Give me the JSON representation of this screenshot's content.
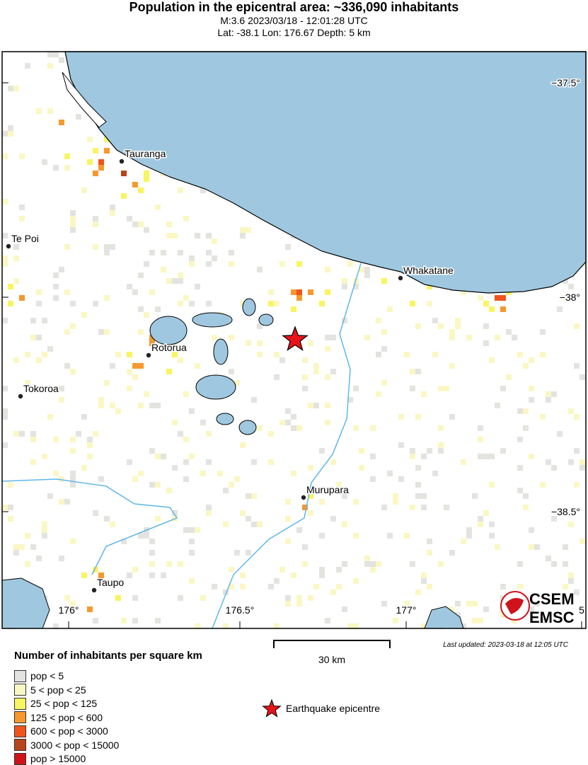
{
  "header": {
    "title": "Population in the epicentral area: ~336,090 inhabitants",
    "subtitle": "M:3.6 2023/03/18 - 12:01:28 UTC",
    "location": "Lat: -38.1 Lon: 176.67 Depth: 5 km"
  },
  "map": {
    "colors": {
      "sea": "#9fc8e0",
      "land": "#ffffff",
      "coast": "#000000",
      "river": "#5fb8e8"
    },
    "lat_ticks": [
      "−37.5°",
      "−38°",
      "−38.5°"
    ],
    "lon_ticks": [
      "176°",
      "176.5°",
      "177°",
      "5"
    ],
    "cities": [
      "Tauranga",
      "Te Poi",
      "Whakatane",
      "Rotorua",
      "Tokoroa",
      "Murupara",
      "Taupo"
    ],
    "epicentre": {
      "lat": -38.1,
      "lon": 176.67
    }
  },
  "logo": {
    "text1": "CSEM",
    "text2": "EMSC"
  },
  "legend": {
    "title": "Number of inhabitants per square km",
    "items": [
      {
        "label": "pop < 5",
        "color": "#e3e3e0"
      },
      {
        "label": "5 < pop < 25",
        "color": "#fbf7c4"
      },
      {
        "label": "25 < pop < 125",
        "color": "#f9f462"
      },
      {
        "label": "125 < pop < 600",
        "color": "#f5992f"
      },
      {
        "label": "600 < pop < 3000",
        "color": "#f0541c"
      },
      {
        "label": "3000 < pop < 15000",
        "color": "#b9441a"
      },
      {
        "label": "pop > 15000",
        "color": "#d0121a"
      }
    ],
    "epicentre_label": "Earthquake epicentre"
  },
  "scale": {
    "label": "30 km"
  },
  "updated": "Last updated: 2023-03-18 at 12:05 UTC"
}
